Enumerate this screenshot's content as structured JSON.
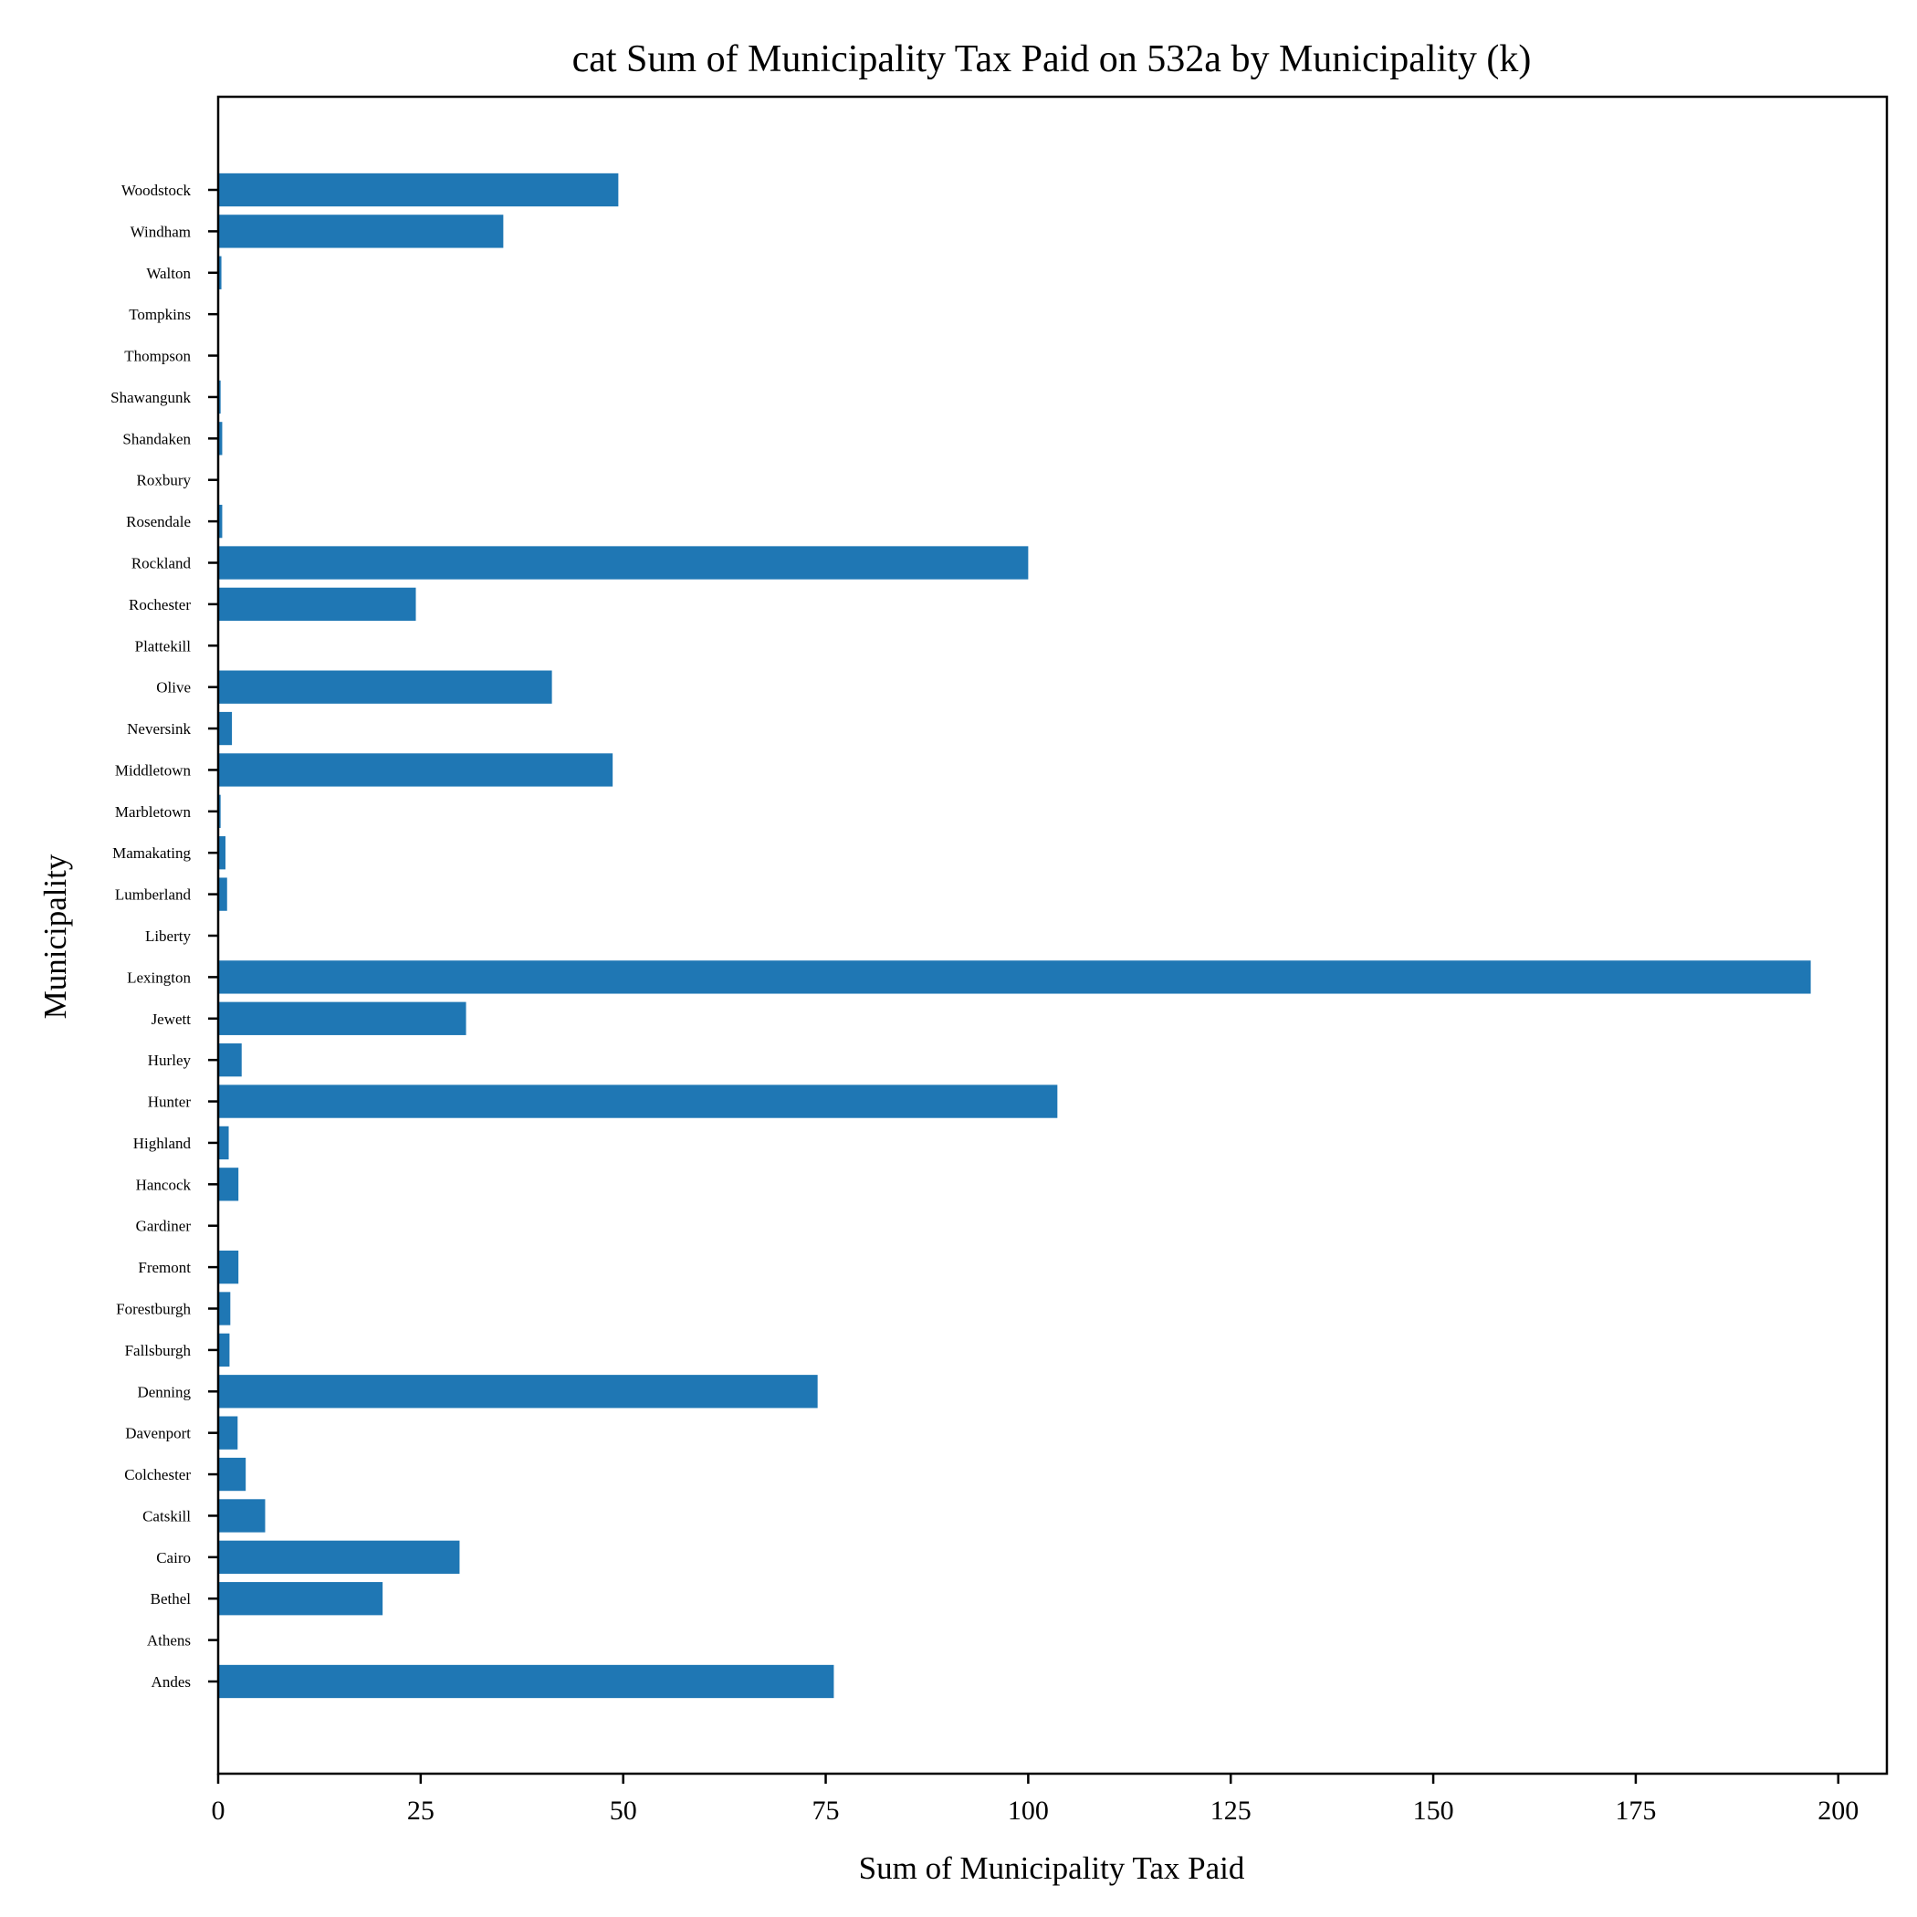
{
  "chart_data": {
    "type": "bar",
    "orientation": "horizontal",
    "title": "cat Sum of Municipality Tax Paid on 532a by Municipality (k)",
    "xlabel": "Sum of Municipality Tax Paid",
    "ylabel": "Municipality",
    "xlim": [
      0,
      206
    ],
    "xticks": [
      0,
      25,
      50,
      75,
      100,
      125,
      150,
      175,
      200
    ],
    "grid": false,
    "bar_color": "#1f77b4",
    "categories": [
      "Andes",
      "Athens",
      "Bethel",
      "Cairo",
      "Catskill",
      "Colchester",
      "Davenport",
      "Denning",
      "Fallsburgh",
      "Forestburgh",
      "Fremont",
      "Gardiner",
      "Hancock",
      "Highland",
      "Hunter",
      "Hurley",
      "Jewett",
      "Lexington",
      "Liberty",
      "Lumberland",
      "Mamakating",
      "Marbletown",
      "Middletown",
      "Neversink",
      "Olive",
      "Plattekill",
      "Rochester",
      "Rockland",
      "Rosendale",
      "Roxbury",
      "Shandaken",
      "Shawangunk",
      "Thompson",
      "Tompkins",
      "Walton",
      "Windham",
      "Woodstock"
    ],
    "values": [
      76.0,
      0.0,
      20.3,
      29.8,
      5.8,
      3.4,
      2.4,
      74.0,
      1.4,
      1.5,
      2.5,
      0.1,
      2.5,
      1.3,
      103.6,
      2.9,
      30.6,
      196.6,
      0.1,
      1.1,
      0.9,
      0.3,
      48.7,
      1.7,
      41.2,
      0.0,
      24.4,
      100.0,
      0.5,
      0.1,
      0.5,
      0.3,
      0.1,
      0.0,
      0.4,
      35.2,
      49.4
    ]
  }
}
